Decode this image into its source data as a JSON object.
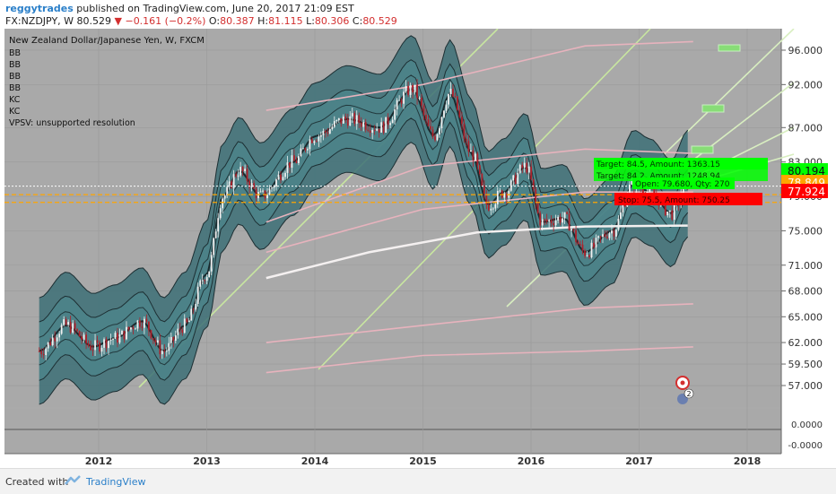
{
  "header": {
    "user": "reggytrades",
    "published": "published on TradingView.com, June 20, 2017 21:09 EST",
    "symbol_line": "FX:NZDJPY, W  80.529",
    "change": "▼ −0.161 (−0.2%)",
    "o_label": "O:",
    "o": "80.387",
    "h_label": "H:",
    "h": "81.115",
    "l_label": "L:",
    "l": "80.306",
    "c_label": "C:",
    "c": "80.529"
  },
  "chart_data": {
    "type": "candlestick",
    "title": "New Zealand Dollar/Japanese Yen, W, FXCM",
    "indicators": [
      "BB",
      "BB",
      "BB",
      "BB",
      "KC",
      "KC",
      "VPSV: unsupported resolution"
    ],
    "x_ticks": [
      "2012",
      "2013",
      "2014",
      "2015",
      "2016",
      "2017",
      "2018"
    ],
    "y_ticks": [
      "96.000",
      "92.000",
      "87.000",
      "83.000",
      "79.000",
      "75.000",
      "71.000",
      "68.000",
      "65.000",
      "62.000",
      "59.500",
      "57.000"
    ],
    "ylim": [
      54.5,
      98.5
    ],
    "sub_ticks": [
      "0.0000",
      "-0.0000"
    ],
    "price_labels": [
      {
        "value": "80.194",
        "color": "#00ff00"
      },
      {
        "value": "78.849",
        "color": "#ffa500"
      },
      {
        "value": "77.924",
        "color": "#ff0000"
      }
    ],
    "order_labels": [
      {
        "text": "Target: 84.5, Amount: 1363.15",
        "color": "#00ff00"
      },
      {
        "text": "Target: 84.2, Amount: 1248.94",
        "color": "#00ff00"
      },
      {
        "text": "Open: 79.680, Qty: 270",
        "color": "#00ff00"
      },
      {
        "text": "Stop: 75.5, Amount: 750.25",
        "color": "#ff0000"
      }
    ],
    "marker_text": "2",
    "price_series_approx": [
      {
        "x": 2011.45,
        "y": 61.0
      },
      {
        "x": 2011.7,
        "y": 64.0
      },
      {
        "x": 2011.95,
        "y": 61.5
      },
      {
        "x": 2012.15,
        "y": 62.5
      },
      {
        "x": 2012.4,
        "y": 64.5
      },
      {
        "x": 2012.6,
        "y": 61.0
      },
      {
        "x": 2012.8,
        "y": 64.0
      },
      {
        "x": 2013.0,
        "y": 70.0
      },
      {
        "x": 2013.15,
        "y": 79.0
      },
      {
        "x": 2013.3,
        "y": 82.0
      },
      {
        "x": 2013.5,
        "y": 79.0
      },
      {
        "x": 2013.8,
        "y": 83.0
      },
      {
        "x": 2014.0,
        "y": 86.0
      },
      {
        "x": 2014.3,
        "y": 88.0
      },
      {
        "x": 2014.6,
        "y": 87.0
      },
      {
        "x": 2014.9,
        "y": 91.5
      },
      {
        "x": 2015.1,
        "y": 86.0
      },
      {
        "x": 2015.25,
        "y": 91.0
      },
      {
        "x": 2015.45,
        "y": 84.0
      },
      {
        "x": 2015.6,
        "y": 78.0
      },
      {
        "x": 2015.75,
        "y": 79.5
      },
      {
        "x": 2015.95,
        "y": 82.5
      },
      {
        "x": 2016.1,
        "y": 76.0
      },
      {
        "x": 2016.3,
        "y": 76.5
      },
      {
        "x": 2016.5,
        "y": 72.5
      },
      {
        "x": 2016.75,
        "y": 75.0
      },
      {
        "x": 2016.95,
        "y": 80.5
      },
      {
        "x": 2017.1,
        "y": 79.5
      },
      {
        "x": 2017.3,
        "y": 77.0
      },
      {
        "x": 2017.45,
        "y": 80.5
      }
    ]
  },
  "footer": {
    "created": "Created with",
    "brand": "TradingView"
  }
}
